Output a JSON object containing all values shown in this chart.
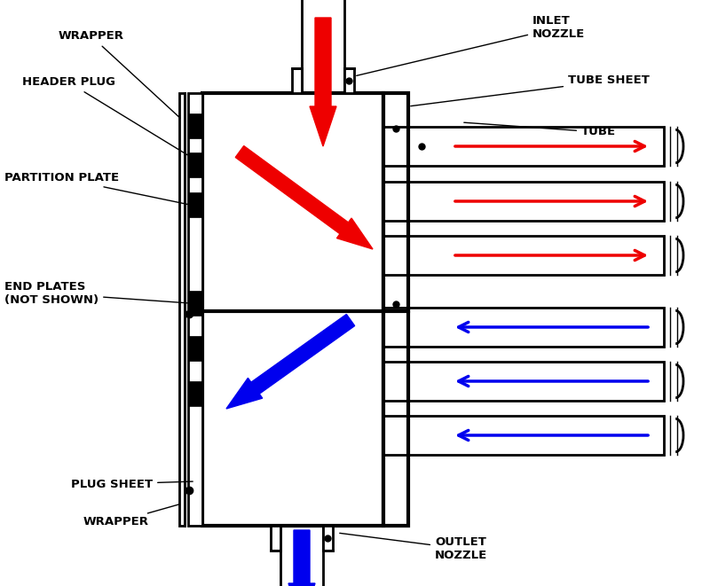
{
  "bg_color": "#ffffff",
  "line_color": "#000000",
  "red_color": "#ee0000",
  "blue_color": "#0000ee",
  "lw": 2.0,
  "labels": {
    "wrapper_top": "WRAPPER",
    "header_plug": "HEADER PLUG",
    "partition_plate": "PARTITION PLATE",
    "end_plates": "END PLATES\n(NOT SHOWN)",
    "plug_sheet": "PLUG SHEET",
    "wrapper_bot": "WRAPPER",
    "inlet_nozzle": "INLET\nNOZZLE",
    "tube_sheet": "TUBE SHEET",
    "tube": "TUBE",
    "outlet_nozzle": "OUTLET\nNOZZLE"
  },
  "fig_w": 8.0,
  "fig_h": 6.61,
  "dpi": 100
}
